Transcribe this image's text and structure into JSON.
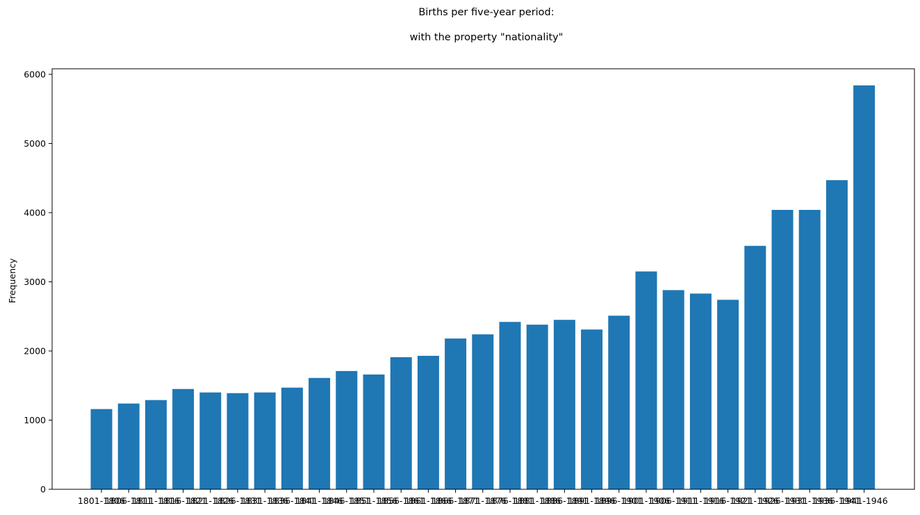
{
  "chart_data": {
    "type": "bar",
    "title": "Births per five-year period:",
    "subtitle": "with the property \"nationality\"",
    "xlabel": "",
    "ylabel": "Frequency",
    "categories": [
      "1801-1806",
      "1806-1811",
      "1811-1816",
      "1816-1821",
      "1821-1826",
      "1826-1831",
      "1831-1836",
      "1836-1841",
      "1841-1846",
      "1846-1851",
      "1851-1856",
      "1856-1861",
      "1861-1866",
      "1866-1871",
      "1871-1876",
      "1876-1881",
      "1881-1886",
      "1886-1891",
      "1891-1896",
      "1896-1901",
      "1901-1906",
      "1906-1911",
      "1911-1916",
      "1916-1921",
      "1921-1926",
      "1926-1931",
      "1931-1936",
      "1936-1941",
      "1941-1946"
    ],
    "values": [
      1160,
      1240,
      1290,
      1450,
      1400,
      1390,
      1400,
      1470,
      1610,
      1710,
      1660,
      1910,
      1930,
      2180,
      2240,
      2420,
      2380,
      2450,
      2310,
      2510,
      3150,
      2880,
      2830,
      2740,
      3520,
      4040,
      4040,
      4470,
      5840
    ],
    "yticks": [
      0,
      1000,
      2000,
      3000,
      4000,
      5000,
      6000
    ],
    "ylim": [
      0,
      6080
    ],
    "grid": false,
    "legend": "none",
    "bar_color": "#1f77b4"
  }
}
